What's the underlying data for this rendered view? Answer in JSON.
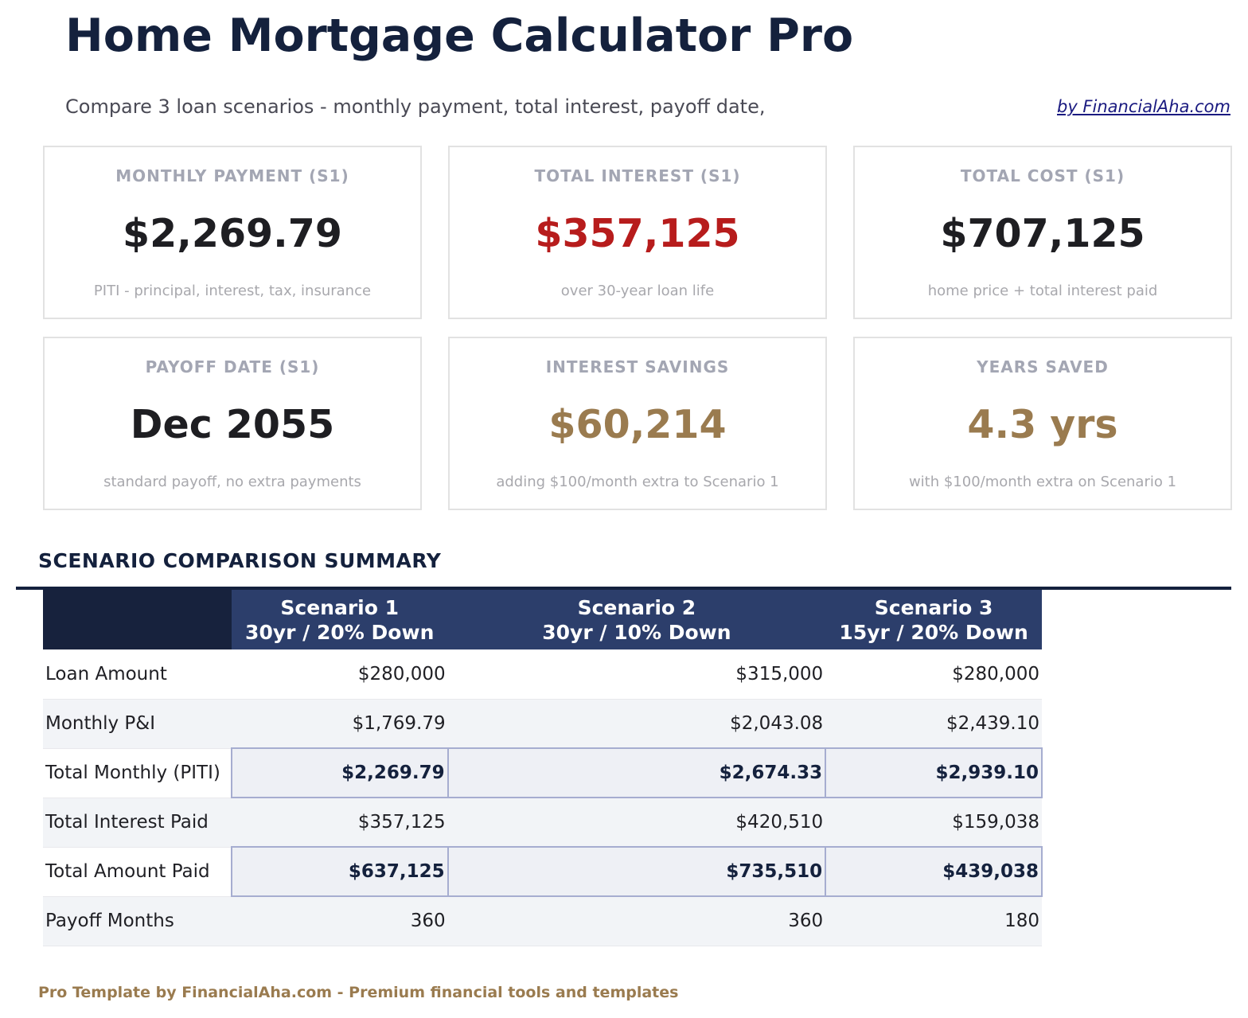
{
  "header": {
    "title": "Home Mortgage Calculator Pro",
    "subtitle": "Compare 3 loan scenarios - monthly payment, total interest, payoff date,",
    "byline": "by FinancialAha.com"
  },
  "colors": {
    "navy": "#14213d",
    "header_blue": "#2c3e6b",
    "red": "#b71c1c",
    "gold": "#9a7b4f"
  },
  "cards": [
    {
      "label": "MONTHLY PAYMENT (S1)",
      "value": "$2,269.79",
      "sub": "PITI - principal, interest, tax, insurance"
    },
    {
      "label": "TOTAL INTEREST (S1)",
      "value": "$357,125",
      "sub": "over 30-year loan life"
    },
    {
      "label": "TOTAL COST (S1)",
      "value": "$707,125",
      "sub": "home price + total interest paid"
    },
    {
      "label": "PAYOFF DATE (S1)",
      "value": "Dec 2055",
      "sub": "standard payoff, no extra payments"
    },
    {
      "label": "INTEREST SAVINGS",
      "value": "$60,214",
      "sub": "adding $100/month extra to Scenario 1"
    },
    {
      "label": "YEARS SAVED",
      "value": "4.3 yrs",
      "sub": "with $100/month extra on Scenario 1"
    }
  ],
  "summary": {
    "heading": "SCENARIO COMPARISON SUMMARY",
    "columns": [
      {
        "name": "Scenario 1",
        "desc": "30yr / 20% Down"
      },
      {
        "name": "Scenario 2",
        "desc": "30yr / 10% Down"
      },
      {
        "name": "Scenario 3",
        "desc": "15yr / 20% Down"
      }
    ],
    "rows": [
      {
        "label": "Loan Amount",
        "values": [
          "$280,000",
          "$315,000",
          "$280,000"
        ]
      },
      {
        "label": "Monthly P&I",
        "values": [
          "$1,769.79",
          "$2,043.08",
          "$2,439.10"
        ]
      },
      {
        "label": "Total Monthly (PITI)",
        "values": [
          "$2,269.79",
          "$2,674.33",
          "$2,939.10"
        ]
      },
      {
        "label": "Total Interest Paid",
        "values": [
          "$357,125",
          "$420,510",
          "$159,038"
        ]
      },
      {
        "label": "Total Amount Paid",
        "values": [
          "$637,125",
          "$735,510",
          "$439,038"
        ]
      },
      {
        "label": "Payoff Months",
        "values": [
          "360",
          "360",
          "180"
        ]
      }
    ]
  },
  "footer": "Pro Template by FinancialAha.com - Premium financial tools and templates"
}
